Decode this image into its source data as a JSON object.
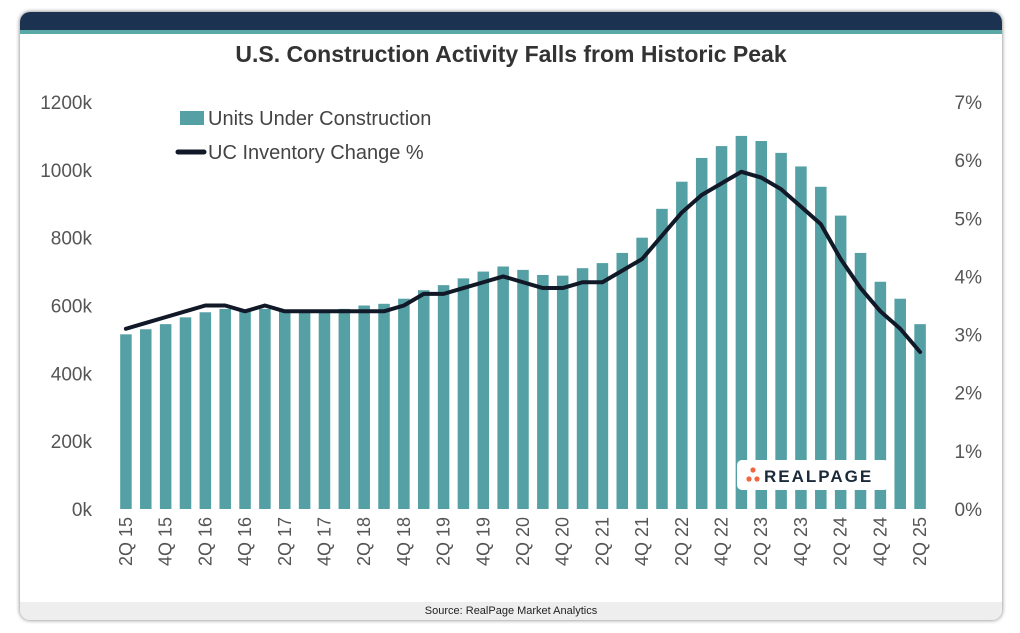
{
  "source": "Source: RealPage Market Analytics",
  "brand": "REALPAGE",
  "colors": {
    "bar": "#55a0a4",
    "line": "#111827",
    "header": "#1b3350",
    "accent": "#5aa9a6"
  },
  "chart_data": {
    "type": "bar",
    "title": "U.S. Construction Activity Falls from Historic Peak",
    "categories": [
      "2Q 15",
      "3Q 15",
      "4Q 15",
      "1Q 16",
      "2Q 16",
      "3Q 16",
      "4Q 16",
      "1Q 17",
      "2Q 17",
      "3Q 17",
      "4Q 17",
      "1Q 18",
      "2Q 18",
      "3Q 18",
      "4Q 18",
      "1Q 19",
      "2Q 19",
      "3Q 19",
      "4Q 19",
      "1Q 20",
      "2Q 20",
      "3Q 20",
      "4Q 20",
      "1Q 21",
      "2Q 21",
      "3Q 21",
      "4Q 21",
      "1Q 22",
      "2Q 22",
      "3Q 22",
      "4Q 22",
      "1Q 23",
      "2Q 23",
      "3Q 23",
      "4Q 23",
      "1Q 24",
      "2Q 24",
      "3Q 24",
      "4Q 24",
      "1Q 25",
      "2Q 25"
    ],
    "tick_labels": [
      "2Q 15",
      "4Q 15",
      "2Q 16",
      "4Q 16",
      "2Q 17",
      "4Q 17",
      "2Q 18",
      "4Q 18",
      "2Q 19",
      "4Q 19",
      "2Q 20",
      "4Q 20",
      "2Q 21",
      "4Q 21",
      "2Q 22",
      "4Q 22",
      "2Q 23",
      "4Q 23",
      "2Q 24",
      "4Q 24",
      "2Q 25"
    ],
    "series": [
      {
        "name": "Units Under Construction",
        "type": "bar",
        "axis": "left",
        "values": [
          515,
          530,
          545,
          565,
          580,
          590,
          585,
          590,
          585,
          585,
          585,
          590,
          600,
          605,
          620,
          645,
          660,
          680,
          700,
          715,
          705,
          690,
          688,
          710,
          725,
          755,
          800,
          885,
          965,
          1035,
          1070,
          1100,
          1085,
          1050,
          1010,
          950,
          865,
          755,
          670,
          620,
          545
        ]
      },
      {
        "name": "UC Inventory Change %",
        "type": "line",
        "axis": "right",
        "values": [
          3.1,
          3.2,
          3.3,
          3.4,
          3.5,
          3.5,
          3.4,
          3.5,
          3.4,
          3.4,
          3.4,
          3.4,
          3.4,
          3.4,
          3.5,
          3.7,
          3.7,
          3.8,
          3.9,
          4.0,
          3.9,
          3.8,
          3.8,
          3.9,
          3.9,
          4.1,
          4.3,
          4.7,
          5.1,
          5.4,
          5.6,
          5.8,
          5.7,
          5.5,
          5.2,
          4.9,
          4.3,
          3.8,
          3.4,
          3.1,
          2.7
        ]
      }
    ],
    "y_left": {
      "min": 0,
      "max": 1200,
      "step": 200,
      "tick_labels": [
        "0k",
        "200k",
        "400k",
        "600k",
        "800k",
        "1000k",
        "1200k"
      ]
    },
    "y_right": {
      "min": 0,
      "max": 7,
      "step": 1,
      "tick_labels": [
        "0%",
        "1%",
        "2%",
        "3%",
        "4%",
        "5%",
        "6%",
        "7%"
      ]
    },
    "legend": [
      {
        "label": "Units Under Construction",
        "kind": "bar"
      },
      {
        "label": "UC Inventory Change %",
        "kind": "line"
      }
    ],
    "legend_position": "top-left",
    "grid": false
  }
}
